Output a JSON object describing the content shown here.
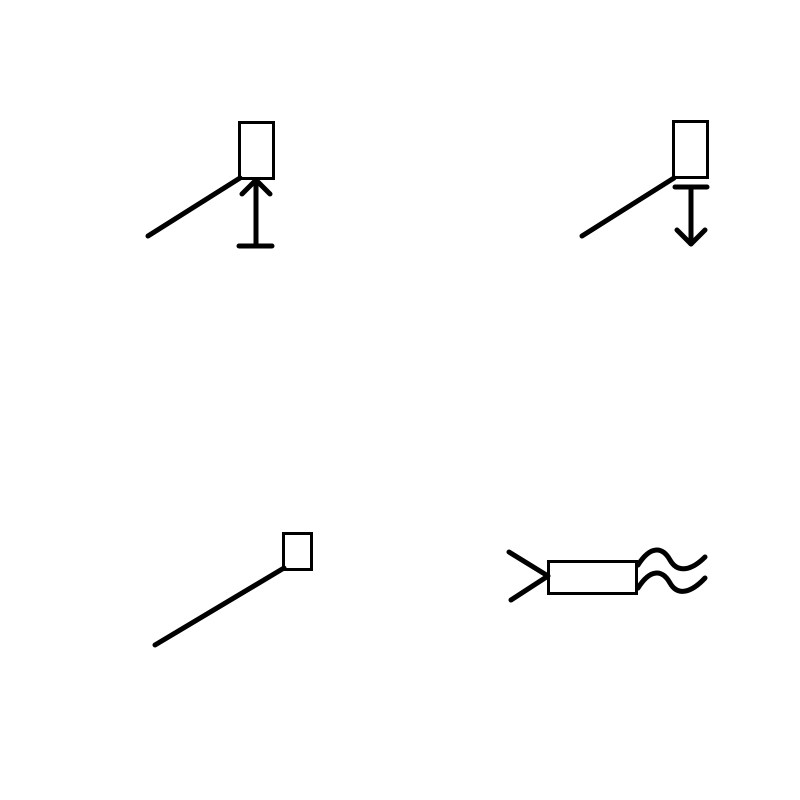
{
  "colors": {
    "background": "#ffffff",
    "ink": "#000000"
  },
  "symbols": [
    {
      "id": "symbol-1",
      "icon": "arm-with-upward-arrow-icon"
    },
    {
      "id": "symbol-2",
      "icon": "arm-with-downward-arrow-icon"
    },
    {
      "id": "symbol-3",
      "icon": "plain-arm-icon"
    },
    {
      "id": "symbol-4",
      "icon": "fork-box-wave-icon"
    }
  ]
}
